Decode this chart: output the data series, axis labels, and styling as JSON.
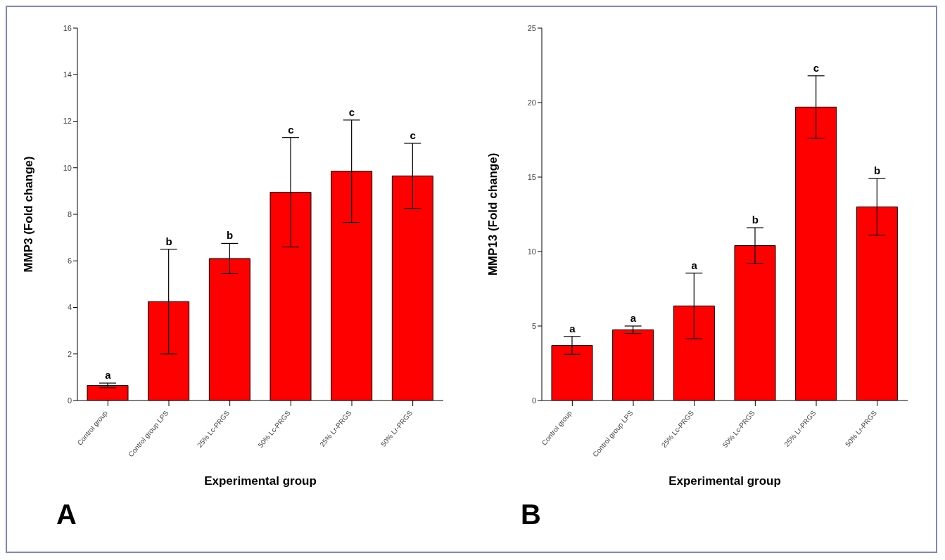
{
  "chart_data": [
    {
      "type": "bar",
      "title": "A",
      "xlabel": "Experimental group",
      "ylabel": "MMP3 (Fold change)",
      "categories": [
        "Control group",
        "Control group LPS",
        "25% Lc-PRGS",
        "50% Lc-PRGS",
        "25% Lr-PRGS",
        "50% Lr-PRGS"
      ],
      "values": [
        0.65,
        4.25,
        6.1,
        8.95,
        9.85,
        9.65
      ],
      "errors": [
        0.1,
        2.25,
        0.65,
        2.35,
        2.2,
        1.4
      ],
      "color": "#ff0000",
      "ylim": [
        0,
        16
      ],
      "yticks": [
        0,
        2,
        4,
        6,
        8,
        10,
        12,
        14,
        16
      ],
      "grid": false,
      "legend": false,
      "annotations": [
        {
          "text": "a",
          "x": "Control group",
          "y": 0.75
        },
        {
          "text": "b",
          "x": "Control group LPS",
          "y": 6.5
        },
        {
          "text": "b",
          "x": "25% Lc-PRGS",
          "y": 6.75
        },
        {
          "text": "c",
          "x": "50% Lc-PRGS",
          "y": 11.3
        },
        {
          "text": "c",
          "x": "25% Lr-PRGS",
          "y": 12.05
        },
        {
          "text": "c",
          "x": "50% Lr-PRGS",
          "y": 11.05
        }
      ]
    },
    {
      "type": "bar",
      "title": "B",
      "xlabel": "Experimental group",
      "ylabel": "MMP13 (Fold change)",
      "categories": [
        "Control group",
        "Control group LPS",
        "25% Lc-PRGS",
        "50% Lc-PRGS",
        "25% Lr-PRGS",
        "50% Lr-PRGS"
      ],
      "values": [
        3.7,
        4.75,
        6.35,
        10.4,
        19.7,
        13.0
      ],
      "errors": [
        0.6,
        0.25,
        2.2,
        1.2,
        2.1,
        1.9
      ],
      "color": "#ff0000",
      "ylim": [
        0,
        25
      ],
      "yticks": [
        0,
        5,
        10,
        15,
        20,
        25
      ],
      "grid": false,
      "legend": false,
      "annotations": [
        {
          "text": "a",
          "x": "Control group",
          "y": 4.3
        },
        {
          "text": "a",
          "x": "Control group LPS",
          "y": 5.0
        },
        {
          "text": "a",
          "x": "25% Lc-PRGS",
          "y": 8.55
        },
        {
          "text": "b",
          "x": "50% Lc-PRGS",
          "y": 11.6
        },
        {
          "text": "c",
          "x": "25% Lr-PRGS",
          "y": 21.8
        },
        {
          "text": "b",
          "x": "50% Lr-PRGS",
          "y": 14.9
        }
      ]
    }
  ]
}
